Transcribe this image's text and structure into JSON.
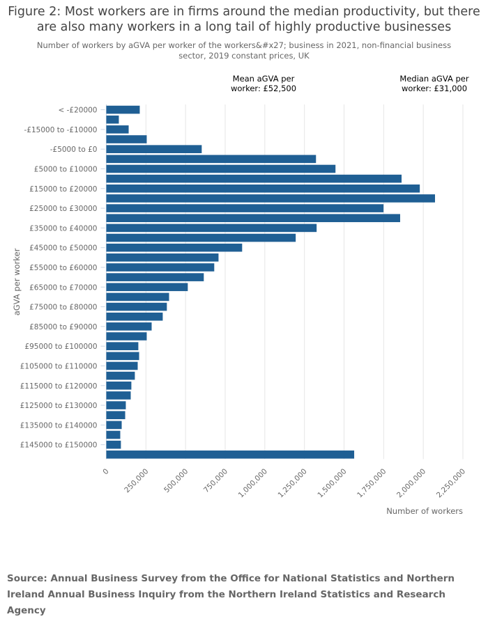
{
  "chart_data": {
    "type": "bar",
    "orientation": "horizontal",
    "title": "Figure 2: Most workers are in firms around the median productivity, but there are also many workers in a long tail of highly productive businesses",
    "subtitle": "Number of workers by aGVA per worker of the workers&#x27; business in 2021, non-financial business sector, 2019 constant prices, UK",
    "xlabel": "Number of workers",
    "ylabel": "aGVA per worker",
    "xlim": [
      0,
      2250000
    ],
    "xticks": [
      "0",
      "250,000",
      "500,000",
      "750,000",
      "1,000,000",
      "1,250,000",
      "1,500,000",
      "1,750,000",
      "2,000,000",
      "2,250,000"
    ],
    "grid": true,
    "bar_color": "#1f5f94",
    "categories": [
      "< -£20000",
      "",
      "-£15000 to -£10000",
      "",
      "-£5000 to £0",
      "",
      "£5000 to £10000",
      "",
      "£15000 to £20000",
      "",
      "£25000 to £30000",
      "",
      "£35000 to £40000",
      "",
      "£45000 to £50000",
      "",
      "£55000 to £60000",
      "",
      "£65000 to £70000",
      "",
      "£75000 to £80000",
      "",
      "£85000 to £90000",
      "",
      "£95000 to £100000",
      "",
      "£105000 to £110000",
      "",
      "£115000 to £120000",
      "",
      "£125000 to £130000",
      "",
      "£135000 to £140000",
      "",
      "£145000 to £150000",
      ""
    ],
    "values": [
      211000,
      79000,
      141000,
      255000,
      602000,
      1323000,
      1446000,
      1863000,
      1978000,
      2074000,
      1749000,
      1854000,
      1327000,
      1195000,
      857000,
      708000,
      681000,
      615000,
      514000,
      396000,
      382000,
      356000,
      286000,
      255000,
      202000,
      207000,
      198000,
      180000,
      158000,
      154000,
      123000,
      119000,
      97000,
      88000,
      92000,
      1564000
    ],
    "annotations": [
      {
        "text": "Mean aGVA per worker: £52,500"
      },
      {
        "text": "Median aGVA per worker: £31,000"
      }
    ]
  },
  "source": "Source: Annual Business Survey from the Office for National Statistics and Northern Ireland Annual Business Inquiry from the Northern Ireland Statistics and Research Agency"
}
